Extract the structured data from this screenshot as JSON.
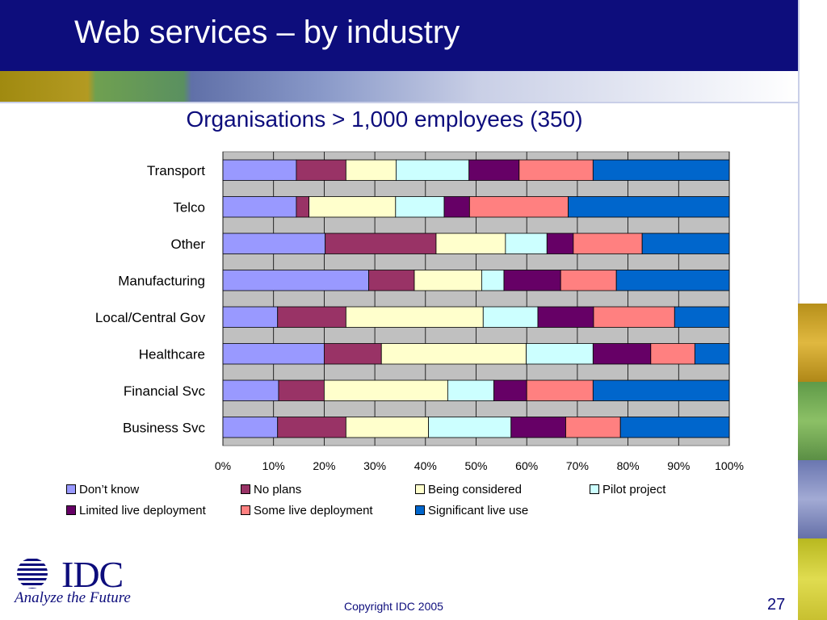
{
  "slide": {
    "title": "Web services – by industry",
    "copyright": "Copyright IDC 2005",
    "page_number": "27"
  },
  "logo": {
    "name": "IDC",
    "tagline": "Analyze the Future"
  },
  "colors": {
    "header_bg": "#0d0d7c",
    "plot_bg": "#c0c0c0",
    "text_accent": "#0d0d7c"
  },
  "chart_data": {
    "type": "bar",
    "orientation": "horizontal",
    "stacked": true,
    "percent": true,
    "title": "Organisations > 1,000 employees (350)",
    "xlabel": "",
    "ylabel": "",
    "xlim": [
      0,
      100
    ],
    "x_ticks": [
      "0%",
      "10%",
      "20%",
      "30%",
      "40%",
      "50%",
      "60%",
      "70%",
      "80%",
      "90%",
      "100%"
    ],
    "grid": true,
    "legend_position": "bottom",
    "categories": [
      "Transport",
      "Telco",
      "Other",
      "Manufacturing",
      "Local/Central Gov",
      "Healthcare",
      "Financial Svc",
      "Business Svc"
    ],
    "series": [
      {
        "name": "Don’t know",
        "color": "#9999ff",
        "values": [
          14.5,
          14.5,
          20.2,
          28.8,
          10.8,
          20.0,
          11.0,
          10.8
        ]
      },
      {
        "name": "No plans",
        "color": "#993366",
        "values": [
          9.8,
          2.5,
          21.9,
          9.0,
          13.5,
          11.3,
          9.0,
          13.5
        ]
      },
      {
        "name": "Being considered",
        "color": "#ffffcc",
        "values": [
          9.9,
          17.1,
          13.7,
          13.3,
          27.1,
          28.6,
          24.4,
          16.3
        ]
      },
      {
        "name": "Pilot project",
        "color": "#ccffff",
        "values": [
          14.4,
          9.6,
          8.2,
          4.4,
          10.8,
          13.2,
          9.1,
          16.3
        ]
      },
      {
        "name": "Limited live deployment",
        "color": "#660066",
        "values": [
          9.9,
          5.0,
          5.2,
          11.2,
          11.0,
          11.4,
          6.5,
          10.8
        ]
      },
      {
        "name": "Some live deployment",
        "color": "#ff8080",
        "values": [
          14.6,
          19.5,
          13.6,
          11.0,
          16.0,
          8.7,
          13.1,
          10.8
        ]
      },
      {
        "name": "Significant live use",
        "color": "#0066cc",
        "values": [
          26.9,
          31.8,
          17.2,
          22.3,
          10.8,
          6.8,
          26.9,
          21.5
        ]
      }
    ]
  }
}
